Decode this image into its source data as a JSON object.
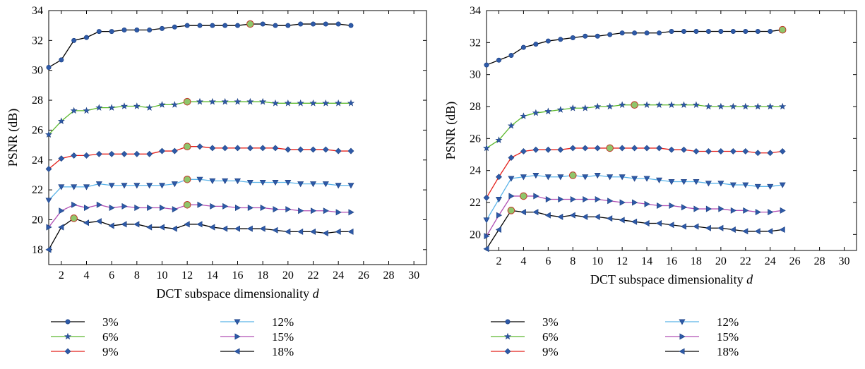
{
  "chart_data": [
    {
      "type": "line",
      "xlabel": "DCT subspace dimensionality",
      "xlabel_var": "d",
      "ylabel": "PSNR (dB)",
      "xlim": [
        1,
        31
      ],
      "ylim": [
        17,
        34
      ],
      "x_ticks": [
        2,
        4,
        6,
        8,
        10,
        12,
        14,
        16,
        18,
        20,
        22,
        24,
        26,
        28,
        30
      ],
      "y_ticks": [
        18,
        20,
        22,
        24,
        26,
        28,
        30,
        32,
        34
      ],
      "grid": false,
      "legend_position": "below",
      "x": [
        1,
        2,
        3,
        4,
        5,
        6,
        7,
        8,
        9,
        10,
        11,
        12,
        13,
        14,
        15,
        16,
        17,
        18,
        19,
        20,
        21,
        22,
        23,
        24,
        25
      ],
      "series": [
        {
          "name": "3%",
          "color": "#000000",
          "marker": "circle",
          "marker_color": "#2e5aa8",
          "best_index": 16,
          "values": [
            30.2,
            30.7,
            32.0,
            32.2,
            32.6,
            32.6,
            32.7,
            32.7,
            32.7,
            32.8,
            32.9,
            33.0,
            33.0,
            33.0,
            33.0,
            33.0,
            33.1,
            33.1,
            33.0,
            33.0,
            33.1,
            33.1,
            33.1,
            33.1,
            33.0
          ]
        },
        {
          "name": "6%",
          "color": "#5cb82d",
          "marker": "star",
          "marker_color": "#2e5aa8",
          "best_index": 11,
          "values": [
            25.7,
            26.6,
            27.3,
            27.3,
            27.5,
            27.5,
            27.6,
            27.6,
            27.5,
            27.7,
            27.7,
            27.9,
            27.9,
            27.9,
            27.9,
            27.9,
            27.9,
            27.9,
            27.8,
            27.8,
            27.8,
            27.8,
            27.8,
            27.8,
            27.8
          ]
        },
        {
          "name": "9%",
          "color": "#e3201b",
          "marker": "diamond",
          "marker_color": "#2e5aa8",
          "best_index": 11,
          "values": [
            23.4,
            24.1,
            24.3,
            24.3,
            24.4,
            24.4,
            24.4,
            24.4,
            24.4,
            24.6,
            24.6,
            24.9,
            24.9,
            24.8,
            24.8,
            24.8,
            24.8,
            24.8,
            24.8,
            24.7,
            24.7,
            24.7,
            24.7,
            24.6,
            24.6
          ]
        },
        {
          "name": "12%",
          "color": "#5bb3e8",
          "marker": "triangle-down",
          "marker_color": "#2e5aa8",
          "best_index": 11,
          "values": [
            21.3,
            22.2,
            22.2,
            22.2,
            22.4,
            22.3,
            22.3,
            22.3,
            22.3,
            22.3,
            22.4,
            22.7,
            22.7,
            22.6,
            22.6,
            22.6,
            22.5,
            22.5,
            22.5,
            22.5,
            22.4,
            22.4,
            22.4,
            22.3,
            22.3
          ]
        },
        {
          "name": "15%",
          "color": "#b04fb4",
          "marker": "triangle-right",
          "marker_color": "#2e5aa8",
          "best_index": 11,
          "values": [
            19.5,
            20.6,
            21.0,
            20.8,
            21.0,
            20.8,
            20.9,
            20.8,
            20.8,
            20.8,
            20.7,
            21.0,
            21.0,
            20.9,
            20.9,
            20.8,
            20.8,
            20.8,
            20.7,
            20.7,
            20.6,
            20.6,
            20.6,
            20.5,
            20.5
          ]
        },
        {
          "name": "18%",
          "color": "#000000",
          "marker": "triangle-left",
          "marker_color": "#2e5aa8",
          "best_index": 2,
          "values": [
            18.0,
            19.5,
            20.1,
            19.8,
            19.9,
            19.6,
            19.7,
            19.7,
            19.5,
            19.5,
            19.4,
            19.7,
            19.7,
            19.5,
            19.4,
            19.4,
            19.4,
            19.4,
            19.3,
            19.2,
            19.2,
            19.2,
            19.1,
            19.2,
            19.2
          ]
        }
      ]
    },
    {
      "type": "line",
      "xlabel": "DCT subspace dimensionality",
      "xlabel_var": "d",
      "ylabel": "PSNR (dB)",
      "xlim": [
        1,
        31
      ],
      "ylim": [
        19,
        34
      ],
      "x_ticks": [
        2,
        4,
        6,
        8,
        10,
        12,
        14,
        16,
        18,
        20,
        22,
        24,
        26,
        28,
        30
      ],
      "y_ticks": [
        20,
        22,
        24,
        26,
        28,
        30,
        32,
        34
      ],
      "grid": false,
      "legend_position": "below",
      "x": [
        1,
        2,
        3,
        4,
        5,
        6,
        7,
        8,
        9,
        10,
        11,
        12,
        13,
        14,
        15,
        16,
        17,
        18,
        19,
        20,
        21,
        22,
        23,
        24,
        25
      ],
      "series": [
        {
          "name": "3%",
          "color": "#000000",
          "marker": "circle",
          "marker_color": "#2e5aa8",
          "best_index": 24,
          "values": [
            30.6,
            30.9,
            31.2,
            31.7,
            31.9,
            32.1,
            32.2,
            32.3,
            32.4,
            32.4,
            32.5,
            32.6,
            32.6,
            32.6,
            32.6,
            32.7,
            32.7,
            32.7,
            32.7,
            32.7,
            32.7,
            32.7,
            32.7,
            32.7,
            32.8
          ]
        },
        {
          "name": "6%",
          "color": "#5cb82d",
          "marker": "star",
          "marker_color": "#2e5aa8",
          "best_index": 12,
          "values": [
            25.4,
            25.9,
            26.8,
            27.4,
            27.6,
            27.7,
            27.8,
            27.9,
            27.9,
            28.0,
            28.0,
            28.1,
            28.1,
            28.1,
            28.1,
            28.1,
            28.1,
            28.1,
            28.0,
            28.0,
            28.0,
            28.0,
            28.0,
            28.0,
            28.0
          ]
        },
        {
          "name": "9%",
          "color": "#e3201b",
          "marker": "diamond",
          "marker_color": "#2e5aa8",
          "best_index": 10,
          "values": [
            22.3,
            23.6,
            24.8,
            25.2,
            25.3,
            25.3,
            25.3,
            25.4,
            25.4,
            25.4,
            25.4,
            25.4,
            25.4,
            25.4,
            25.4,
            25.3,
            25.3,
            25.2,
            25.2,
            25.2,
            25.2,
            25.2,
            25.1,
            25.1,
            25.2
          ]
        },
        {
          "name": "12%",
          "color": "#5bb3e8",
          "marker": "triangle-down",
          "marker_color": "#2e5aa8",
          "best_index": 7,
          "values": [
            20.9,
            22.2,
            23.5,
            23.6,
            23.7,
            23.6,
            23.6,
            23.7,
            23.6,
            23.7,
            23.6,
            23.6,
            23.5,
            23.5,
            23.4,
            23.3,
            23.3,
            23.3,
            23.2,
            23.2,
            23.1,
            23.1,
            23.0,
            23.0,
            23.1
          ]
        },
        {
          "name": "15%",
          "color": "#b04fb4",
          "marker": "triangle-right",
          "marker_color": "#2e5aa8",
          "best_index": 3,
          "values": [
            19.9,
            21.2,
            22.4,
            22.4,
            22.4,
            22.2,
            22.2,
            22.2,
            22.2,
            22.2,
            22.1,
            22.0,
            22.0,
            21.9,
            21.8,
            21.8,
            21.7,
            21.6,
            21.6,
            21.6,
            21.5,
            21.5,
            21.4,
            21.4,
            21.5
          ]
        },
        {
          "name": "18%",
          "color": "#000000",
          "marker": "triangle-left",
          "marker_color": "#2e5aa8",
          "best_index": 2,
          "values": [
            19.1,
            20.3,
            21.5,
            21.4,
            21.4,
            21.2,
            21.1,
            21.2,
            21.1,
            21.1,
            21.0,
            20.9,
            20.8,
            20.7,
            20.7,
            20.6,
            20.5,
            20.5,
            20.4,
            20.4,
            20.3,
            20.2,
            20.2,
            20.2,
            20.3
          ]
        }
      ]
    }
  ],
  "colors": {
    "best_point_fill": "#8fc66a",
    "best_point_stroke": "#c0392b",
    "axis": "#000000"
  }
}
